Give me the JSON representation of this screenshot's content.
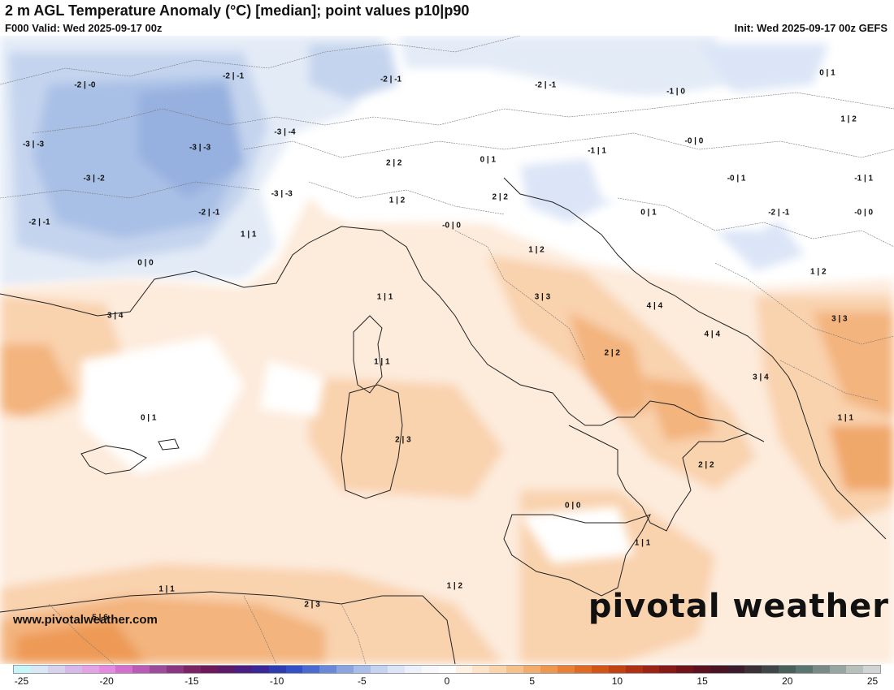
{
  "header": {
    "title": "2 m AGL Temperature Anomaly (°C) [median]; point values p10|p90",
    "valid": "F000 Valid: Wed 2025-09-17 00z",
    "init": "Init: Wed 2025-09-17 00z GEFS"
  },
  "footer": {
    "website": "www.pivotalweather.com",
    "brand": "pivotal weather"
  },
  "points": [
    {
      "label": "-2 | -0",
      "lon": 1.3,
      "lat": 48.6
    },
    {
      "label": "-2 | -1",
      "lon": 6.2,
      "lat": 48.9
    },
    {
      "label": "-2 | -1",
      "lon": 11.4,
      "lat": 48.8
    },
    {
      "label": "-2 | -1",
      "lon": 16.5,
      "lat": 48.6
    },
    {
      "label": "-1 | 0",
      "lon": 20.8,
      "lat": 48.4
    },
    {
      "label": "0 | 1",
      "lon": 25.8,
      "lat": 49.0
    },
    {
      "label": "-3 | -3",
      "lon": -0.4,
      "lat": 46.7
    },
    {
      "label": "-3 | -3",
      "lon": 5.1,
      "lat": 46.6
    },
    {
      "label": "-3 | -4",
      "lon": 7.9,
      "lat": 47.1
    },
    {
      "label": "-3 | -2",
      "lon": 1.6,
      "lat": 45.6
    },
    {
      "label": "-3 | -3",
      "lon": 7.8,
      "lat": 45.1
    },
    {
      "label": "2 | 2",
      "lon": 11.5,
      "lat": 46.1
    },
    {
      "label": "0 | 1",
      "lon": 14.6,
      "lat": 46.2
    },
    {
      "label": "-1 | 1",
      "lon": 18.2,
      "lat": 46.5
    },
    {
      "label": "-0 | 0",
      "lon": 21.4,
      "lat": 46.8
    },
    {
      "label": "1 | 2",
      "lon": 26.5,
      "lat": 47.5
    },
    {
      "label": "1 | 2",
      "lon": 11.6,
      "lat": 44.9
    },
    {
      "label": "2 | 2",
      "lon": 15.0,
      "lat": 45.0
    },
    {
      "label": "-0 | 1",
      "lon": 22.8,
      "lat": 45.6
    },
    {
      "label": "-1 | 1",
      "lon": 27.0,
      "lat": 45.6
    },
    {
      "label": "-2 | -1",
      "lon": -0.2,
      "lat": 44.2
    },
    {
      "label": "-2 | -1",
      "lon": 5.4,
      "lat": 44.5
    },
    {
      "label": "1 | 1",
      "lon": 6.7,
      "lat": 43.8
    },
    {
      "label": "-0 | 0",
      "lon": 13.4,
      "lat": 44.1
    },
    {
      "label": "0 | 1",
      "lon": 19.9,
      "lat": 44.5
    },
    {
      "label": "-2 | -1",
      "lon": 24.2,
      "lat": 44.5
    },
    {
      "label": "-0 | 0",
      "lon": 27.0,
      "lat": 44.5
    },
    {
      "label": "0 | 0",
      "lon": 3.3,
      "lat": 42.9
    },
    {
      "label": "1 | 2",
      "lon": 16.2,
      "lat": 43.3
    },
    {
      "label": "1 | 2",
      "lon": 25.5,
      "lat": 42.6
    },
    {
      "label": "3 | 4",
      "lon": 2.3,
      "lat": 41.2
    },
    {
      "label": "1 | 1",
      "lon": 11.2,
      "lat": 41.8
    },
    {
      "label": "3 | 3",
      "lon": 16.4,
      "lat": 41.8
    },
    {
      "label": "4 | 4",
      "lon": 20.1,
      "lat": 41.5
    },
    {
      "label": "3 | 3",
      "lon": 26.2,
      "lat": 41.1
    },
    {
      "label": "4 | 4",
      "lon": 22.0,
      "lat": 40.6
    },
    {
      "label": "2 | 2",
      "lon": 18.7,
      "lat": 40.0
    },
    {
      "label": "1 | 1",
      "lon": 11.1,
      "lat": 39.7
    },
    {
      "label": "3 | 4",
      "lon": 23.6,
      "lat": 39.2
    },
    {
      "label": "0 | 1",
      "lon": 3.4,
      "lat": 37.9
    },
    {
      "label": "1 | 1",
      "lon": 26.4,
      "lat": 37.9
    },
    {
      "label": "2 | 3",
      "lon": 11.8,
      "lat": 37.2
    },
    {
      "label": "2 | 2",
      "lon": 21.8,
      "lat": 36.4
    },
    {
      "label": "0 | 0",
      "lon": 17.4,
      "lat": 35.1
    },
    {
      "label": "1 | 1",
      "lon": 19.7,
      "lat": 33.9
    },
    {
      "label": "1 | 1",
      "lon": 4.0,
      "lat": 32.4
    },
    {
      "label": "1 | 2",
      "lon": 13.5,
      "lat": 32.5
    },
    {
      "label": "5 | 6",
      "lon": 1.8,
      "lat": 31.5
    },
    {
      "label": "2 | 3",
      "lon": 8.8,
      "lat": 31.9
    }
  ],
  "legend": {
    "tick_labels": [
      "-25",
      "-20",
      "-15",
      "-10",
      "-5",
      "0",
      "5",
      "10",
      "15",
      "20",
      "25"
    ],
    "min": -25,
    "max": 26,
    "colors": [
      "#c6f5fa",
      "#d8e8f6",
      "#d9d2ef",
      "#d6b8ea",
      "#e3a3e6",
      "#e48ae0",
      "#d46ecf",
      "#b85ab6",
      "#9c4a9a",
      "#8a3680",
      "#7a2466",
      "#6e1a5a",
      "#5c1a6a",
      "#4a1e82",
      "#3a2898",
      "#2f3cb0",
      "#3350c6",
      "#4a6ad0",
      "#6a88da",
      "#8aa4e2",
      "#a8bde9",
      "#c4d3f1",
      "#dbe5f7",
      "#ecf1fb",
      "#f7f9fd",
      "#ffffff",
      "#fff1e4",
      "#fde3c8",
      "#fad4aa",
      "#f6c28c",
      "#f2ad6c",
      "#ee974f",
      "#e88136",
      "#df6a22",
      "#d25516",
      "#c34212",
      "#b03112",
      "#9c2414",
      "#861a16",
      "#70141a",
      "#5c121e",
      "#4a1422",
      "#3c1c2a",
      "#3a3036",
      "#404648",
      "#4a5e5a",
      "#5a7470",
      "#788a86",
      "#98a6a2",
      "#b8c0bc",
      "#d0d4d2"
    ]
  }
}
